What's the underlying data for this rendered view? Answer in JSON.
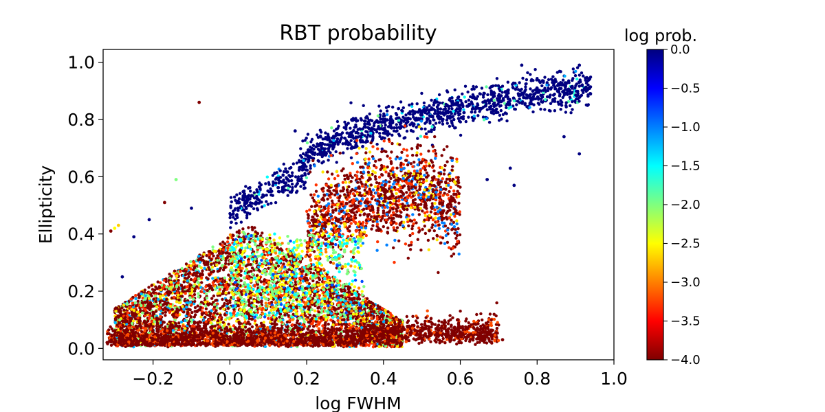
{
  "chart_data": {
    "type": "scatter",
    "title": "RBT probability",
    "xlabel": "log FWHM",
    "ylabel": "Ellipticity",
    "xlim": [
      -0.33,
      1.0
    ],
    "ylim": [
      -0.04,
      1.045
    ],
    "x_ticks": [
      -0.2,
      0.0,
      0.2,
      0.4,
      0.6,
      0.8,
      1.0
    ],
    "x_tick_labels": [
      "−0.2",
      "0.0",
      "0.2",
      "0.4",
      "0.6",
      "0.8",
      "1.0"
    ],
    "y_ticks": [
      0.0,
      0.2,
      0.4,
      0.6,
      0.8,
      1.0
    ],
    "y_tick_labels": [
      "0.0",
      "0.2",
      "0.4",
      "0.6",
      "0.8",
      "1.0"
    ],
    "colorbar": {
      "title": "log prob.",
      "colormap": "jet_r",
      "range": [
        -4.0,
        0.0
      ],
      "ticks": [
        0.0,
        -0.5,
        -1.0,
        -1.5,
        -2.0,
        -2.5,
        -3.0,
        -3.5,
        -4.0
      ],
      "tick_labels": [
        "0.0",
        "−0.5",
        "−1.0",
        "−1.5",
        "−2.0",
        "−2.5",
        "−3.0",
        "−3.5",
        "−4.0"
      ]
    },
    "grid": false,
    "density_clusters": [
      {
        "name": "upper-branch",
        "x_range": [
          0.18,
          0.94
        ],
        "y_along": [
          0.62,
          0.92
        ],
        "spread": 0.03,
        "log_prob": 0.0,
        "count": 1200
      },
      {
        "name": "branch-start",
        "x_range": [
          0.0,
          0.2
        ],
        "y_along": [
          0.44,
          0.6
        ],
        "spread": 0.03,
        "log_prob": 0.0,
        "count": 250
      },
      {
        "name": "mid-lobe",
        "x_range": [
          0.2,
          0.6
        ],
        "y_along": [
          0.35,
          0.55
        ],
        "spread": 0.08,
        "log_prob": -3.8,
        "count": 1500
      },
      {
        "name": "lower-triangle",
        "x_range": [
          -0.3,
          0.45
        ],
        "y_along": [
          0.0,
          0.35
        ],
        "spread": 0.08,
        "log_prob": -3.3,
        "count": 4200
      },
      {
        "name": "bottom-band",
        "x_range": [
          -0.32,
          0.7
        ],
        "y_along": [
          0.03,
          0.05
        ],
        "spread": 0.03,
        "log_prob": -3.9,
        "count": 2000
      },
      {
        "name": "light-core",
        "x_range": [
          0.0,
          0.35
        ],
        "y_along": [
          0.1,
          0.4
        ],
        "spread": 0.06,
        "log_prob": -2.0,
        "count": 700
      }
    ],
    "outliers": [
      {
        "x": -0.08,
        "y": 0.86,
        "log_prob": -4.0
      },
      {
        "x": -0.14,
        "y": 0.59,
        "log_prob": -2.0
      },
      {
        "x": -0.17,
        "y": 0.51,
        "log_prob": -4.0
      },
      {
        "x": -0.21,
        "y": 0.45,
        "log_prob": 0.0
      },
      {
        "x": -0.1,
        "y": 0.49,
        "log_prob": 0.0
      },
      {
        "x": -0.25,
        "y": 0.39,
        "log_prob": 0.0
      },
      {
        "x": -0.28,
        "y": 0.25,
        "log_prob": 0.0
      },
      {
        "x": 0.17,
        "y": 0.76,
        "log_prob": 0.0
      },
      {
        "x": 0.91,
        "y": 0.68,
        "log_prob": 0.0
      },
      {
        "x": 0.87,
        "y": 0.74,
        "log_prob": 0.0
      },
      {
        "x": 0.73,
        "y": 0.63,
        "log_prob": 0.0
      },
      {
        "x": 0.74,
        "y": 0.57,
        "log_prob": 0.0
      },
      {
        "x": 0.67,
        "y": 0.59,
        "log_prob": 0.0
      },
      {
        "x": 0.76,
        "y": 0.99,
        "log_prob": 0.0
      },
      {
        "x": 0.91,
        "y": 0.99,
        "log_prob": 0.0
      },
      {
        "x": 0.71,
        "y": 0.03,
        "log_prob": -4.0
      },
      {
        "x": -0.31,
        "y": 0.41,
        "log_prob": -4.0
      },
      {
        "x": -0.3,
        "y": 0.42,
        "log_prob": -2.5
      },
      {
        "x": -0.29,
        "y": 0.43,
        "log_prob": -2.7
      }
    ]
  }
}
